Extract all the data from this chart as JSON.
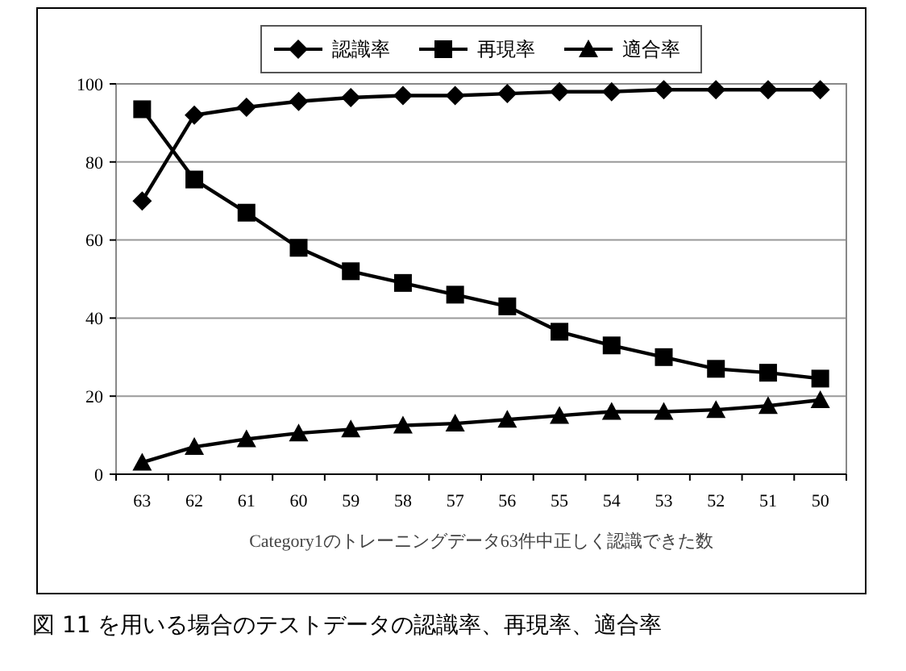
{
  "chart_data": {
    "type": "line",
    "xlabel": "Category1のトレーニングデータ63件中正しく認識できた数",
    "categories": [
      "63",
      "62",
      "61",
      "60",
      "59",
      "58",
      "57",
      "56",
      "55",
      "54",
      "53",
      "52",
      "51",
      "50"
    ],
    "series": [
      {
        "name": "認識率",
        "color": "#000000",
        "marker": "diamond",
        "values": [
          70,
          92,
          94,
          95.5,
          96.5,
          97,
          97,
          97.5,
          98,
          98,
          98.5,
          98.5,
          98.5,
          98.5
        ]
      },
      {
        "name": "再現率",
        "color": "#000000",
        "marker": "square",
        "values": [
          93.5,
          75.5,
          67,
          58,
          52,
          49,
          46,
          43,
          36.5,
          33,
          30,
          27,
          26,
          24.5
        ]
      },
      {
        "name": "適合率",
        "color": "#000000",
        "marker": "triangle",
        "values": [
          3,
          7,
          9,
          10.5,
          11.5,
          12.5,
          13,
          14,
          15,
          16,
          16,
          16.5,
          17.5,
          19
        ]
      }
    ],
    "ylim": [
      0,
      100
    ],
    "yticks": [
      0,
      20,
      40,
      60,
      80,
      100
    ],
    "grid": "y",
    "legend": "top",
    "line_style": "solid",
    "annotations": [
      "図 11 を用いる場合のテストデータの認識率、再現率、適合率"
    ]
  }
}
